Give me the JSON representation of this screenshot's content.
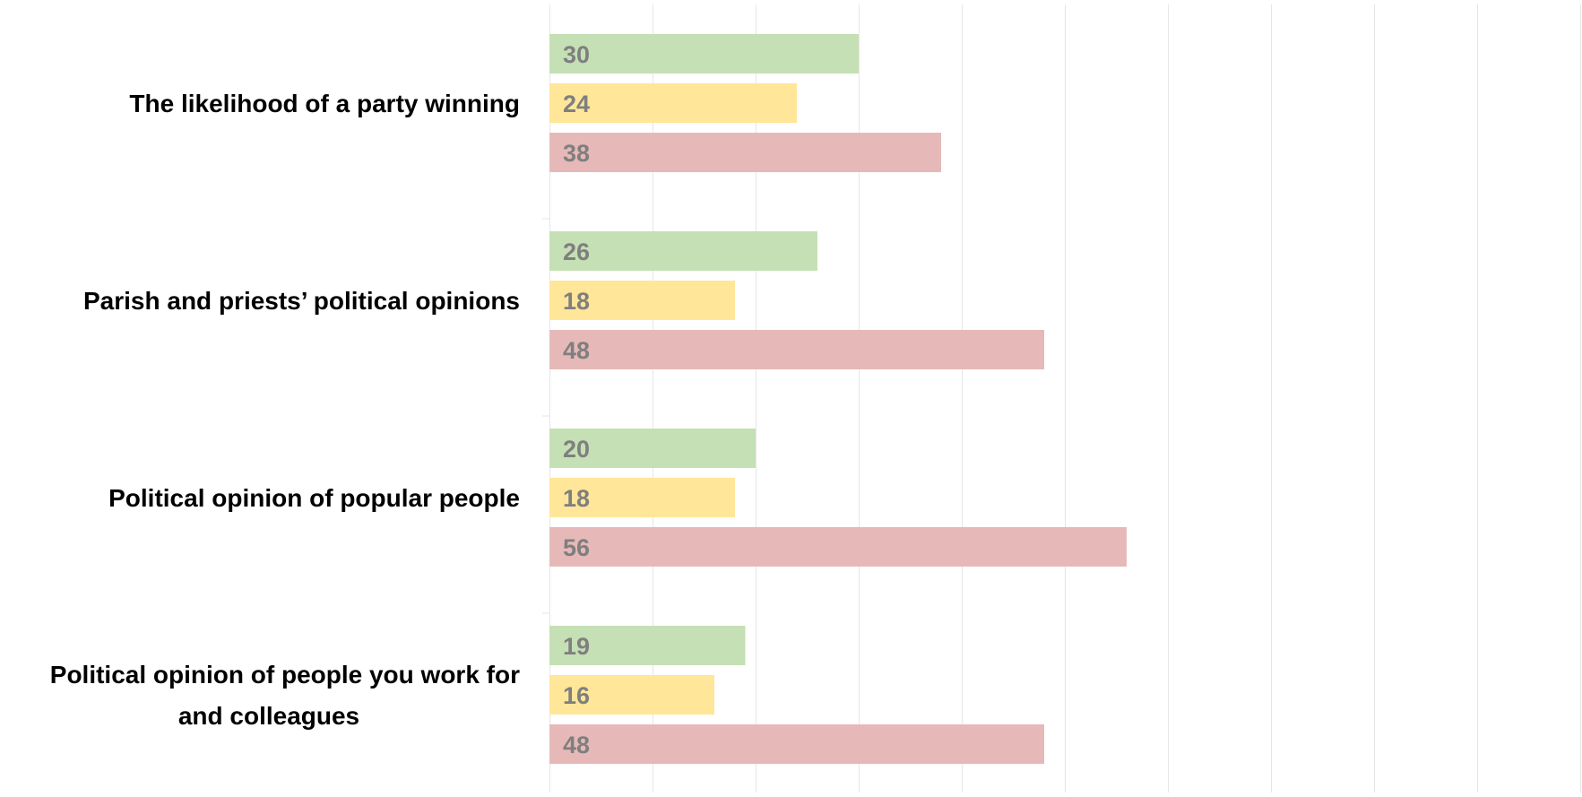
{
  "chart_data": {
    "type": "bar",
    "orientation": "horizontal",
    "categories": [
      [
        "The likelihood of a party winning"
      ],
      [
        "Parish and priests’ political opinions"
      ],
      [
        "Political opinion of popular people"
      ],
      [
        "Political opinion of people you work for",
        "and colleagues"
      ]
    ],
    "series": [
      {
        "color": "#c5e0b4",
        "values": [
          30,
          26,
          20,
          19
        ]
      },
      {
        "color": "#ffe699",
        "values": [
          24,
          18,
          18,
          16
        ]
      },
      {
        "color": "#e6b9b8",
        "values": [
          38,
          48,
          56,
          48
        ]
      }
    ],
    "xlim": [
      0,
      100
    ],
    "grid": true,
    "xticks_visible": false,
    "legend": "none"
  }
}
